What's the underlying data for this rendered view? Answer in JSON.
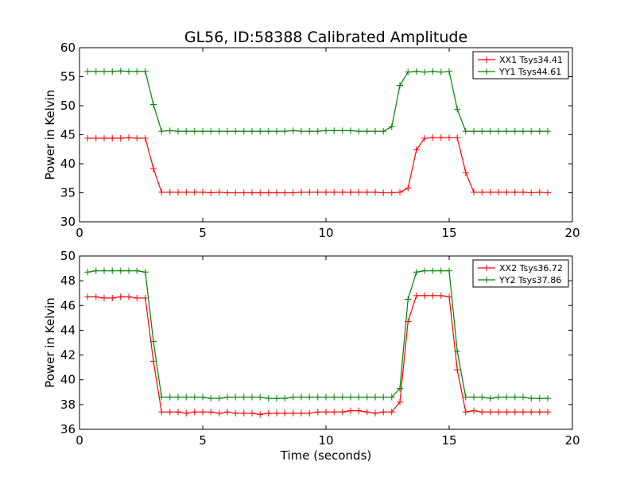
{
  "figure": {
    "title": "GL56, ID:58388 Calibrated Amplitude"
  },
  "chart_data": [
    {
      "type": "line",
      "title": "GL56, ID:58388 Calibrated Amplitude",
      "xlabel": "",
      "ylabel": "Power in Kelvin",
      "xlim": [
        0,
        20
      ],
      "ylim": [
        30,
        60
      ],
      "xticks": [
        0,
        5,
        10,
        15,
        20
      ],
      "yticks": [
        30,
        35,
        40,
        45,
        50,
        55,
        60
      ],
      "grid": false,
      "legend_position": "top-right",
      "x": [
        0.33,
        0.67,
        1.0,
        1.33,
        1.67,
        2.0,
        2.33,
        2.67,
        3.0,
        3.33,
        3.67,
        4.0,
        4.33,
        4.67,
        5.0,
        5.33,
        5.67,
        6.0,
        6.33,
        6.67,
        7.0,
        7.33,
        7.67,
        8.0,
        8.33,
        8.67,
        9.0,
        9.33,
        9.67,
        10.0,
        10.33,
        10.67,
        11.0,
        11.33,
        11.67,
        12.0,
        12.33,
        12.67,
        13.0,
        13.33,
        13.67,
        14.0,
        14.33,
        14.67,
        15.0,
        15.33,
        15.67,
        16.0,
        16.33,
        16.67,
        17.0,
        17.33,
        17.67,
        18.0,
        18.33,
        18.67,
        19.0
      ],
      "series": [
        {
          "name": "XX1 Tsys34.41",
          "color": "#ff0000",
          "values": [
            44.4,
            44.4,
            44.4,
            44.4,
            44.4,
            44.5,
            44.4,
            44.4,
            39.2,
            35.1,
            35.1,
            35.1,
            35.1,
            35.1,
            35.1,
            35.0,
            35.1,
            35.0,
            35.0,
            35.0,
            35.0,
            35.0,
            35.0,
            35.0,
            35.0,
            35.0,
            35.1,
            35.1,
            35.1,
            35.1,
            35.1,
            35.1,
            35.1,
            35.1,
            35.1,
            35.1,
            35.0,
            35.0,
            35.1,
            35.8,
            42.4,
            44.4,
            44.5,
            44.5,
            44.5,
            44.5,
            38.5,
            35.1,
            35.1,
            35.1,
            35.1,
            35.1,
            35.1,
            35.1,
            35.0,
            35.1,
            35.0
          ]
        },
        {
          "name": "YY1 Tsys44.61",
          "color": "#008000",
          "values": [
            55.9,
            55.9,
            55.9,
            55.9,
            56.0,
            55.9,
            55.9,
            55.9,
            50.2,
            45.6,
            45.7,
            45.6,
            45.6,
            45.6,
            45.6,
            45.6,
            45.6,
            45.6,
            45.6,
            45.6,
            45.6,
            45.6,
            45.6,
            45.6,
            45.6,
            45.7,
            45.6,
            45.6,
            45.6,
            45.7,
            45.7,
            45.7,
            45.7,
            45.6,
            45.6,
            45.6,
            45.6,
            46.4,
            53.5,
            55.8,
            55.9,
            55.8,
            55.9,
            55.8,
            55.9,
            49.4,
            45.6,
            45.6,
            45.6,
            45.6,
            45.6,
            45.6,
            45.6,
            45.6,
            45.6,
            45.6,
            45.6
          ]
        }
      ]
    },
    {
      "type": "line",
      "title": "",
      "xlabel": "Time (seconds)",
      "ylabel": "Power in Kelvin",
      "xlim": [
        0,
        20
      ],
      "ylim": [
        36,
        50
      ],
      "xticks": [
        0,
        5,
        10,
        15,
        20
      ],
      "yticks": [
        36,
        38,
        40,
        42,
        44,
        46,
        48,
        50
      ],
      "grid": false,
      "legend_position": "top-right",
      "x": [
        0.33,
        0.67,
        1.0,
        1.33,
        1.67,
        2.0,
        2.33,
        2.67,
        3.0,
        3.33,
        3.67,
        4.0,
        4.33,
        4.67,
        5.0,
        5.33,
        5.67,
        6.0,
        6.33,
        6.67,
        7.0,
        7.33,
        7.67,
        8.0,
        8.33,
        8.67,
        9.0,
        9.33,
        9.67,
        10.0,
        10.33,
        10.67,
        11.0,
        11.33,
        11.67,
        12.0,
        12.33,
        12.67,
        13.0,
        13.33,
        13.67,
        14.0,
        14.33,
        14.67,
        15.0,
        15.33,
        15.67,
        16.0,
        16.33,
        16.67,
        17.0,
        17.33,
        17.67,
        18.0,
        18.33,
        18.67,
        19.0
      ],
      "series": [
        {
          "name": "XX2 Tsys36.72",
          "color": "#ff0000",
          "values": [
            46.7,
            46.7,
            46.6,
            46.6,
            46.7,
            46.7,
            46.6,
            46.6,
            41.5,
            37.4,
            37.4,
            37.4,
            37.3,
            37.4,
            37.4,
            37.4,
            37.3,
            37.4,
            37.3,
            37.3,
            37.3,
            37.2,
            37.3,
            37.3,
            37.3,
            37.3,
            37.3,
            37.3,
            37.4,
            37.4,
            37.4,
            37.4,
            37.5,
            37.5,
            37.4,
            37.3,
            37.4,
            37.4,
            38.2,
            44.7,
            46.8,
            46.8,
            46.8,
            46.8,
            46.7,
            40.8,
            37.4,
            37.5,
            37.4,
            37.4,
            37.4,
            37.4,
            37.4,
            37.4,
            37.4,
            37.4,
            37.4
          ]
        },
        {
          "name": "YY2 Tsys37.86",
          "color": "#008000",
          "values": [
            48.7,
            48.8,
            48.8,
            48.8,
            48.8,
            48.8,
            48.8,
            48.7,
            43.1,
            38.6,
            38.6,
            38.6,
            38.6,
            38.6,
            38.6,
            38.5,
            38.5,
            38.6,
            38.6,
            38.6,
            38.6,
            38.6,
            38.5,
            38.5,
            38.5,
            38.6,
            38.6,
            38.6,
            38.6,
            38.6,
            38.6,
            38.6,
            38.6,
            38.6,
            38.6,
            38.6,
            38.6,
            38.6,
            39.3,
            46.5,
            48.7,
            48.8,
            48.8,
            48.8,
            48.8,
            42.3,
            38.6,
            38.6,
            38.6,
            38.5,
            38.6,
            38.6,
            38.6,
            38.6,
            38.5,
            38.5,
            38.5
          ]
        }
      ]
    }
  ]
}
